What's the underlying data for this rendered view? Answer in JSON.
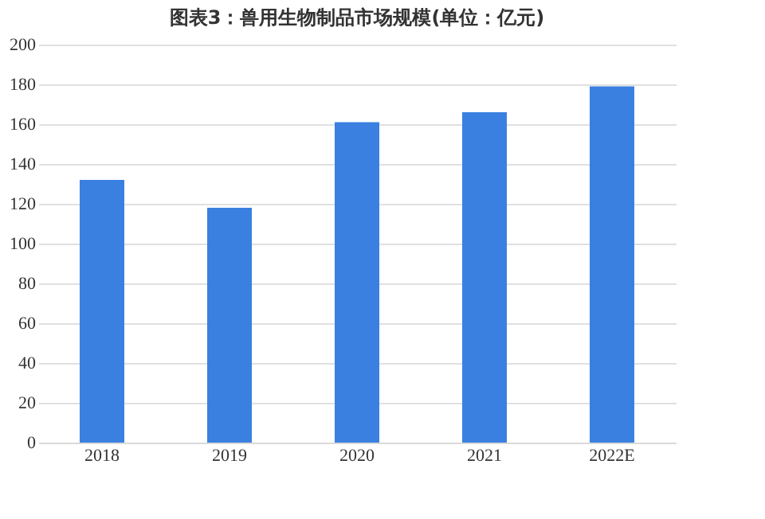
{
  "chart_data": {
    "type": "bar",
    "title": "图表3：兽用生物制品市场规模(单位：亿元)",
    "categories": [
      "2018",
      "2019",
      "2020",
      "2021",
      "2022E"
    ],
    "values": [
      132,
      118,
      161,
      166,
      179
    ],
    "color": "#3a80e0",
    "ylim": [
      0,
      200
    ],
    "yticks": [
      0,
      20,
      40,
      60,
      80,
      100,
      120,
      140,
      160,
      180,
      200
    ],
    "grid": "y"
  }
}
